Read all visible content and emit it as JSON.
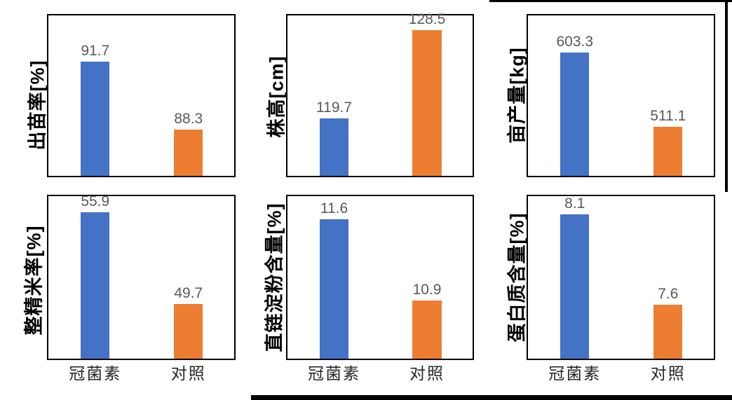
{
  "figure": {
    "series": [
      "冠菌素",
      "对照"
    ],
    "colors": {
      "treatment_bar": "#4472C4",
      "control_bar": "#ED7D31",
      "value_label": "#595959",
      "category_label": "#262626",
      "plot_border": "#000000"
    }
  },
  "chart_data": [
    {
      "type": "bar",
      "ylabel": "出苗率[%]",
      "categories": [
        "冠菌素",
        "对照"
      ],
      "values": [
        91.7,
        88.3
      ],
      "value_labels": [
        "91.7",
        "88.3"
      ],
      "ylim": [
        86,
        94
      ],
      "x_tick_labels_visible": false,
      "grid": false,
      "legend": "none"
    },
    {
      "type": "bar",
      "ylabel": "株高[cm]",
      "categories": [
        "冠菌素",
        "对照"
      ],
      "values": [
        119.7,
        128.5
      ],
      "value_labels": [
        "119.7",
        "128.5"
      ],
      "ylim": [
        114,
        130
      ],
      "x_tick_labels_visible": false,
      "grid": false,
      "legend": "none"
    },
    {
      "type": "bar",
      "ylabel": "亩产量[kg]",
      "categories": [
        "冠菌素",
        "对照"
      ],
      "values": [
        603.3,
        511.1
      ],
      "value_labels": [
        "603.3",
        "511.1"
      ],
      "ylim": [
        450,
        650
      ],
      "x_tick_labels_visible": false,
      "grid": false,
      "legend": "none"
    },
    {
      "type": "bar",
      "ylabel": "整精米率[%]",
      "categories": [
        "冠菌素",
        "对照"
      ],
      "values": [
        55.9,
        49.7
      ],
      "value_labels": [
        "55.9",
        "49.7"
      ],
      "ylim": [
        46,
        57
      ],
      "x_tick_labels_visible": true,
      "grid": false,
      "legend": "none"
    },
    {
      "type": "bar",
      "ylabel": "直链淀粉含量[%]",
      "categories": [
        "冠菌素",
        "对照"
      ],
      "values": [
        11.6,
        10.9
      ],
      "value_labels": [
        "11.6",
        "10.9"
      ],
      "ylim": [
        10.4,
        11.8
      ],
      "x_tick_labels_visible": true,
      "grid": false,
      "legend": "none"
    },
    {
      "type": "bar",
      "ylabel": "蛋白质含量[%]",
      "categories": [
        "冠菌素",
        "对照"
      ],
      "values": [
        8.1,
        7.6
      ],
      "value_labels": [
        "8.1",
        "7.6"
      ],
      "ylim": [
        7.3,
        8.2
      ],
      "x_tick_labels_visible": true,
      "grid": false,
      "legend": "none"
    }
  ]
}
